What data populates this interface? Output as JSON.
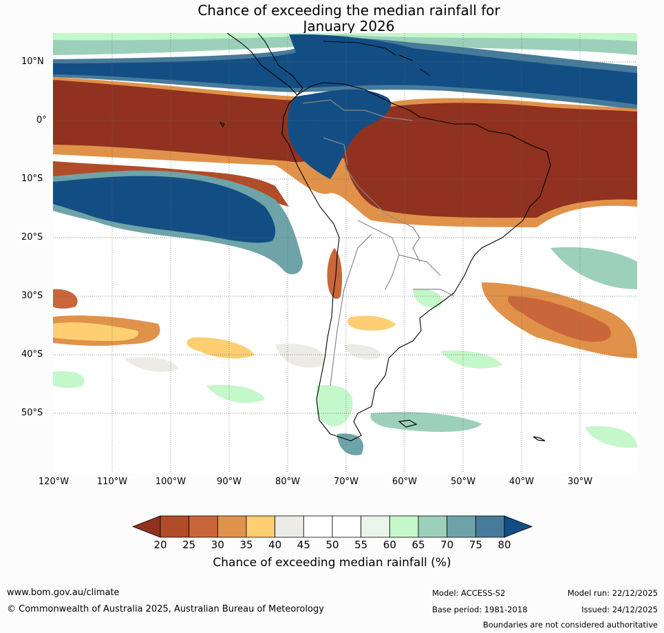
{
  "title": {
    "line1": "Chance of exceeding the median rainfall for",
    "line2": "January 2026"
  },
  "map": {
    "lat_labels": [
      "10°N",
      "0°",
      "10°S",
      "20°S",
      "30°S",
      "40°S",
      "50°S"
    ],
    "lon_labels": [
      "120°W",
      "110°W",
      "100°W",
      "90°W",
      "80°W",
      "70°W",
      "60°W",
      "50°W",
      "40°W",
      "30°W"
    ],
    "colors": {
      "c20": "#913120",
      "c25": "#b14c29",
      "c30": "#c9673a",
      "c35": "#e0924a",
      "c40": "#fdcf72",
      "c45": "#edebe5",
      "c50": "#ffffff",
      "c55": "#ffffff",
      "c60": "#e8f5e8",
      "c65": "#c4f7c9",
      "c70": "#9cd0bb",
      "c75": "#6ea4a8",
      "c80": "#477b9a",
      "c85": "#124e84"
    }
  },
  "colorbar": {
    "ticks": [
      "20",
      "25",
      "30",
      "35",
      "40",
      "45",
      "50",
      "55",
      "60",
      "65",
      "70",
      "75",
      "80"
    ],
    "label": "Chance of exceeding median rainfall (%)"
  },
  "footer": {
    "website": "www.bom.gov.au/climate",
    "copyright": "© Commonwealth of Australia 2025, Australian Bureau of Meteorology",
    "model": "Model: ACCESS-S2",
    "base_period": "Base period: 1981-2018",
    "model_run": "Model run: 22/12/2025",
    "issued": "Issued: 24/12/2025",
    "disclaimer": "Boundaries are not considered authoritative"
  }
}
